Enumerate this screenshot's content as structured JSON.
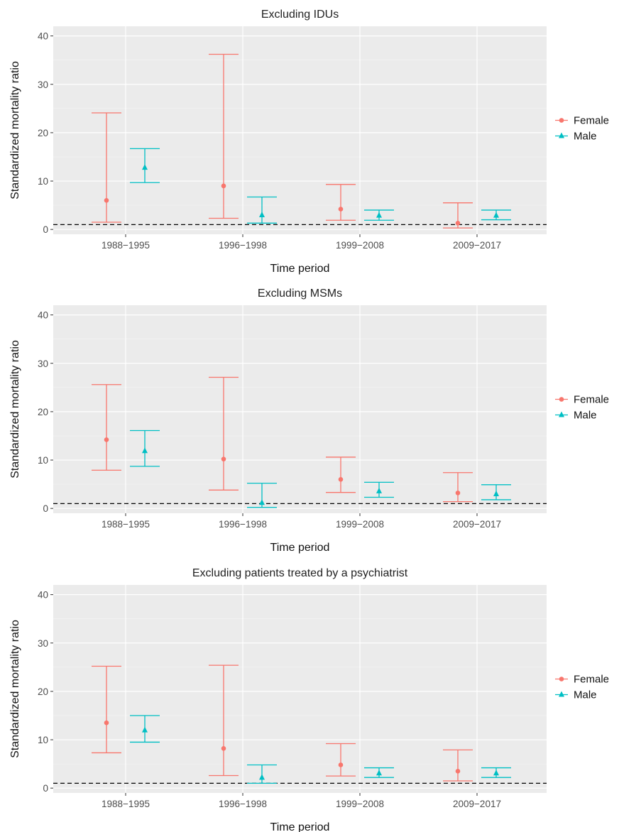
{
  "chart_data": [
    {
      "type": "errorbar",
      "title": "Excluding IDUs",
      "xlabel": "Time period",
      "ylabel": "Standardized mortality ratio",
      "ylim": [
        -1,
        42
      ],
      "yticks": [
        0,
        10,
        20,
        30,
        40
      ],
      "reference_line": 1,
      "categories": [
        "1988−1995",
        "1996−1998",
        "1999−2008",
        "2009−2017"
      ],
      "series": [
        {
          "name": "Female",
          "color": "#F8766D",
          "marker": "circle",
          "values": [
            6.0,
            9.0,
            4.2,
            1.3
          ],
          "lower": [
            1.5,
            2.3,
            1.9,
            0.3
          ],
          "upper": [
            24.1,
            36.2,
            9.3,
            5.5
          ]
        },
        {
          "name": "Male",
          "color": "#00BFC4",
          "marker": "triangle",
          "values": [
            12.8,
            3.0,
            2.9,
            2.9
          ],
          "lower": [
            9.7,
            1.3,
            1.9,
            2.0
          ],
          "upper": [
            16.7,
            6.7,
            4.0,
            4.0
          ]
        }
      ],
      "legend": "right"
    },
    {
      "type": "errorbar",
      "title": "Excluding MSMs",
      "xlabel": "Time period",
      "ylabel": "Standardized mortality ratio",
      "ylim": [
        -1,
        42
      ],
      "yticks": [
        0,
        10,
        20,
        30,
        40
      ],
      "reference_line": 1,
      "categories": [
        "1988−1995",
        "1996−1998",
        "1999−2008",
        "2009−2017"
      ],
      "series": [
        {
          "name": "Female",
          "color": "#F8766D",
          "marker": "circle",
          "values": [
            14.2,
            10.2,
            6.0,
            3.2
          ],
          "lower": [
            7.9,
            3.8,
            3.3,
            1.4
          ],
          "upper": [
            25.6,
            27.1,
            10.6,
            7.4
          ]
        },
        {
          "name": "Male",
          "color": "#00BFC4",
          "marker": "triangle",
          "values": [
            11.9,
            1.2,
            3.6,
            3.0
          ],
          "lower": [
            8.7,
            0.2,
            2.3,
            1.8
          ],
          "upper": [
            16.1,
            5.2,
            5.4,
            4.9
          ]
        }
      ],
      "legend": "right"
    },
    {
      "type": "errorbar",
      "title": "Excluding patients treated by a psychiatrist",
      "xlabel": "Time period",
      "ylabel": "Standardized mortality ratio",
      "ylim": [
        -1,
        42
      ],
      "yticks": [
        0,
        10,
        20,
        30,
        40
      ],
      "reference_line": 1,
      "categories": [
        "1988−1995",
        "1996−1998",
        "1999−2008",
        "2009−2017"
      ],
      "series": [
        {
          "name": "Female",
          "color": "#F8766D",
          "marker": "circle",
          "values": [
            13.5,
            8.2,
            4.8,
            3.5
          ],
          "lower": [
            7.3,
            2.6,
            2.5,
            1.5
          ],
          "upper": [
            25.2,
            25.4,
            9.2,
            7.9
          ]
        },
        {
          "name": "Male",
          "color": "#00BFC4",
          "marker": "triangle",
          "values": [
            12.0,
            2.2,
            3.1,
            3.1
          ],
          "lower": [
            9.5,
            1.0,
            2.2,
            2.2
          ],
          "upper": [
            15.0,
            4.8,
            4.2,
            4.2
          ]
        }
      ],
      "legend": "right"
    }
  ]
}
